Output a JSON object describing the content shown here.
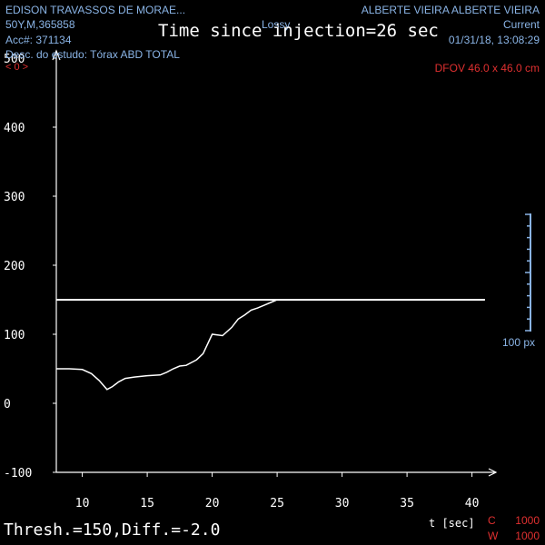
{
  "patient": {
    "name": "EDISON TRAVASSOS DE MORAE...",
    "age_sex_id": "50Y,M,365858",
    "accession": "Acc#: 371134",
    "study_desc": "Desc. do estudo: Tórax ABD TOTAL"
  },
  "top_center": {
    "compression": "Lossy",
    "big_title": "Time since injection=26 sec"
  },
  "top_right": {
    "physician": "ALBERTE VIEIRA ALBERTE VIEIRA",
    "series": "Current",
    "datetime": "01/31/18, 13:08:29",
    "dfov": "DFOV 46.0 x 46.0 cm"
  },
  "marker": "< 0 >",
  "scale_label": "100 px",
  "footer": {
    "thresh": "Thresh.=150,Diff.=-2.0",
    "x_unit": "t [sec]"
  },
  "window": {
    "c_label": "C",
    "c_value": "1000",
    "w_label": "W",
    "w_value": "1000"
  },
  "colors": {
    "overlay_text": "#8ab4e6",
    "window_text": "#e03030",
    "plot": "#ffffff"
  },
  "chart_data": {
    "type": "line",
    "x_unit": "t [sec]",
    "xlim": [
      8,
      42
    ],
    "ylim": [
      -100,
      500
    ],
    "x_ticks": [
      10,
      15,
      20,
      25,
      30,
      35,
      40
    ],
    "y_ticks": [
      -100,
      0,
      100,
      200,
      300,
      400,
      500
    ],
    "threshold": 150,
    "series": [
      {
        "x": [
          8,
          9,
          10,
          10.7,
          11.3,
          11.9,
          12.3,
          12.8,
          13.3,
          14,
          15,
          16,
          16.5,
          17,
          17.5,
          18,
          18.8,
          19.3,
          20,
          20.8,
          21.5,
          22,
          22.5,
          23,
          23.5,
          24,
          24.5,
          25
        ],
        "y": [
          50,
          50,
          49,
          43,
          33,
          20,
          24,
          31,
          36,
          38,
          40,
          41,
          45,
          50,
          54,
          55,
          63,
          72,
          100,
          98,
          110,
          122,
          128,
          135,
          138,
          142,
          146,
          150
        ]
      }
    ]
  }
}
